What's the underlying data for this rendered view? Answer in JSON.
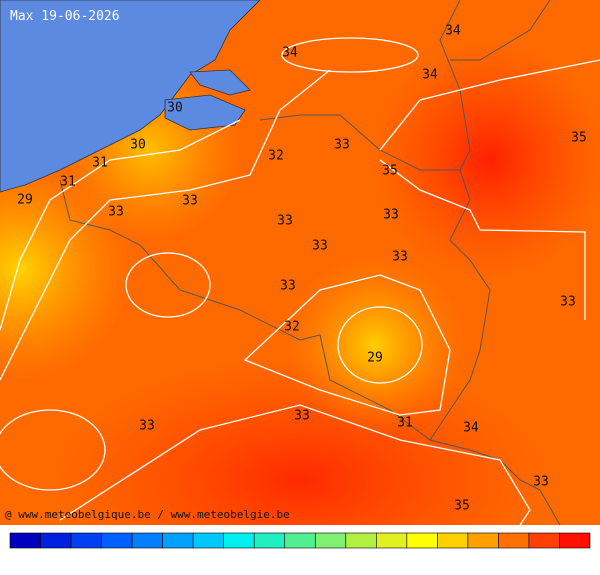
{
  "title": "Max 19-06-2026",
  "credit": "@ www.meteobelgique.be / www.meteobelgie.be",
  "isotherm_labels": [
    34,
    34,
    34,
    30,
    30,
    31,
    31,
    29,
    33,
    33,
    32,
    33,
    35,
    35,
    33,
    33,
    33,
    33,
    33,
    32,
    29,
    33,
    33,
    33,
    31,
    34,
    33,
    35
  ]
}
